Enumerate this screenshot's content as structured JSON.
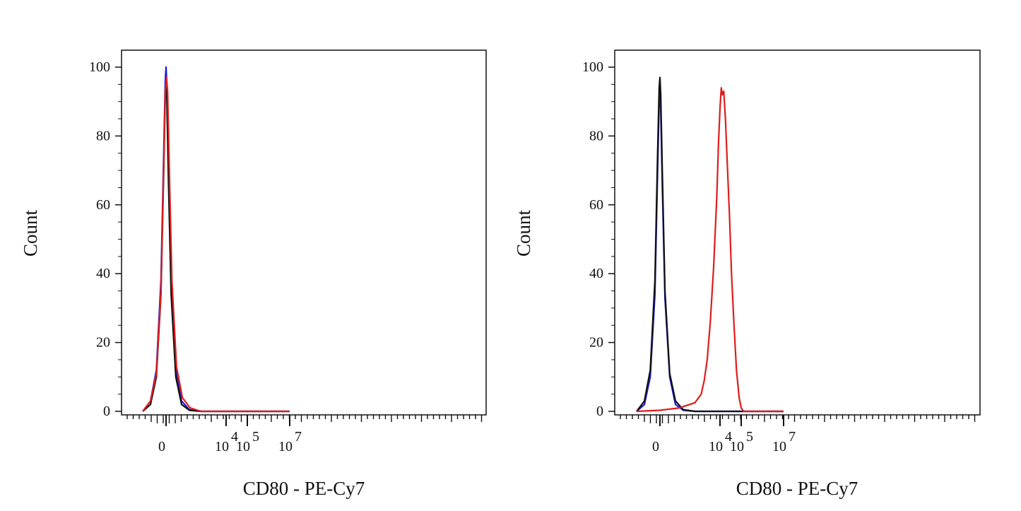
{
  "chart_data": [
    {
      "type": "histogram",
      "panel": "left",
      "xlabel": "CD80 - PE-Cy7",
      "ylabel": "Count",
      "x_scale": "biexponential",
      "ylim": [
        0,
        100
      ],
      "y_ticks": [
        "0",
        "20",
        "40",
        "60",
        "80",
        "100"
      ],
      "x_ticks": [
        {
          "base": "0",
          "exp": "",
          "value": 0
        },
        {
          "base": "10",
          "exp": "4",
          "value": 10000
        },
        {
          "base": "10",
          "exp": "5",
          "value": 100000
        },
        {
          "base": "10",
          "exp": "7",
          "value": 10000000
        }
      ],
      "grid": false,
      "series": [
        {
          "color": "#1a1ad6",
          "x": [
            -600,
            -400,
            -250,
            -130,
            -60,
            -20,
            0,
            20,
            60,
            130,
            250,
            400,
            600,
            900,
            10000000
          ],
          "y": [
            0,
            3,
            12,
            38,
            75,
            96,
            100,
            95,
            72,
            38,
            12,
            3,
            0.5,
            0,
            0
          ]
        },
        {
          "color": "#111111",
          "x": [
            -600,
            -400,
            -250,
            -130,
            -60,
            -20,
            0,
            20,
            60,
            130,
            250,
            400,
            600,
            900,
            10000000
          ],
          "y": [
            0,
            2,
            10,
            34,
            70,
            92,
            95,
            91,
            68,
            34,
            10,
            2,
            0.3,
            0,
            0
          ]
        },
        {
          "color": "#e01c1c",
          "x": [
            -600,
            -400,
            -250,
            -130,
            -60,
            -20,
            10,
            40,
            80,
            150,
            270,
            420,
            620,
            900,
            10000000
          ],
          "y": [
            0,
            3,
            11,
            35,
            72,
            93,
            97,
            93,
            72,
            38,
            13,
            4,
            1,
            0,
            0
          ]
        }
      ]
    },
    {
      "type": "histogram",
      "panel": "right",
      "xlabel": "CD80 - PE-Cy7",
      "ylabel": "Count",
      "x_scale": "biexponential",
      "ylim": [
        0,
        100
      ],
      "y_ticks": [
        "0",
        "20",
        "40",
        "60",
        "80",
        "100"
      ],
      "x_ticks": [
        {
          "base": "0",
          "exp": "",
          "value": 0
        },
        {
          "base": "10",
          "exp": "4",
          "value": 10000
        },
        {
          "base": "10",
          "exp": "5",
          "value": 100000
        },
        {
          "base": "10",
          "exp": "7",
          "value": 10000000
        }
      ],
      "grid": false,
      "series": [
        {
          "color": "#1a1ad6",
          "x": [
            -600,
            -400,
            -250,
            -130,
            -60,
            -20,
            0,
            20,
            60,
            130,
            250,
            400,
            600,
            900,
            10000000
          ],
          "y": [
            0,
            2,
            10,
            34,
            70,
            90,
            93,
            88,
            66,
            33,
            10,
            2,
            0.3,
            0,
            0
          ]
        },
        {
          "color": "#111111",
          "x": [
            -600,
            -400,
            -250,
            -130,
            -60,
            -20,
            0,
            20,
            60,
            130,
            250,
            400,
            600,
            900,
            10000000
          ],
          "y": [
            0,
            3,
            12,
            38,
            75,
            94,
            97,
            92,
            70,
            35,
            11,
            3,
            0.5,
            0,
            0
          ]
        },
        {
          "color": "#e01c1c",
          "x": [
            -600,
            0,
            500,
            900,
            1300,
            1800,
            2500,
            3500,
            5000,
            7000,
            8500,
            10000,
            11500,
            13000,
            15000,
            18000,
            22000,
            28000,
            35000,
            45000,
            60000,
            80000,
            100000,
            130000,
            10000000
          ],
          "y": [
            0,
            0.3,
            1,
            2.5,
            5,
            9,
            15,
            26,
            42,
            62,
            78,
            88,
            94,
            92,
            93,
            85,
            72,
            57,
            40,
            26,
            12,
            4,
            1,
            0,
            0
          ]
        }
      ]
    }
  ]
}
